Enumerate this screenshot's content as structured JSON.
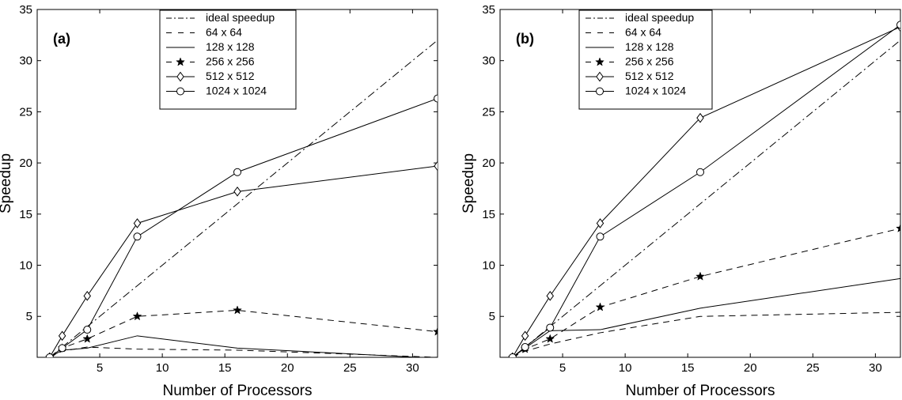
{
  "chart_data": [
    {
      "type": "line",
      "panel_label": "(a)",
      "xlabel": "Number of Processors",
      "ylabel": "Speedup",
      "xlim": [
        0,
        32
      ],
      "ylim": [
        1,
        35
      ],
      "xticks": [
        5,
        10,
        15,
        20,
        25,
        30
      ],
      "yticks": [
        5,
        10,
        15,
        20,
        25,
        30,
        35
      ],
      "grid": false,
      "legend_position": "top-center",
      "series": [
        {
          "name": "ideal speedup",
          "line": "dashdot",
          "marker": "none",
          "x": [
            1,
            32
          ],
          "y": [
            1,
            32
          ]
        },
        {
          "name": "64 x 64",
          "line": "dashed",
          "marker": "none",
          "x": [
            1,
            2,
            4,
            8,
            16,
            32
          ],
          "y": [
            1.0,
            1.6,
            2.0,
            1.8,
            1.7,
            1.0
          ]
        },
        {
          "name": "128 x 128",
          "line": "solid",
          "marker": "none",
          "x": [
            1,
            2,
            4,
            8,
            16,
            32
          ],
          "y": [
            1.0,
            1.7,
            1.9,
            3.1,
            1.9,
            0.9
          ]
        },
        {
          "name": "256 x 256",
          "line": "dashed",
          "marker": "star",
          "x": [
            1,
            2,
            4,
            8,
            16,
            32
          ],
          "y": [
            1.0,
            1.9,
            2.8,
            5.0,
            5.6,
            3.5
          ]
        },
        {
          "name": "512 x 512",
          "line": "solid",
          "marker": "diamond",
          "x": [
            1,
            2,
            4,
            8,
            16,
            32
          ],
          "y": [
            1.0,
            3.1,
            7.0,
            14.1,
            17.2,
            19.7
          ]
        },
        {
          "name": "1024 x 1024",
          "line": "solid",
          "marker": "circle",
          "x": [
            1,
            2,
            4,
            8,
            16,
            32
          ],
          "y": [
            1.0,
            1.9,
            3.7,
            12.8,
            19.1,
            26.3
          ]
        }
      ]
    },
    {
      "type": "line",
      "panel_label": "(b)",
      "xlabel": "Number of Processors",
      "ylabel": "Speedup",
      "xlim": [
        0,
        32
      ],
      "ylim": [
        1,
        35
      ],
      "xticks": [
        5,
        10,
        15,
        20,
        25,
        30
      ],
      "yticks": [
        5,
        10,
        15,
        20,
        25,
        30,
        35
      ],
      "grid": false,
      "legend_position": "top-center",
      "series": [
        {
          "name": "ideal speedup",
          "line": "dashdot",
          "marker": "none",
          "x": [
            1,
            32
          ],
          "y": [
            1,
            32
          ]
        },
        {
          "name": "64 x 64",
          "line": "dashed",
          "marker": "none",
          "x": [
            1,
            2,
            4,
            8,
            16,
            32
          ],
          "y": [
            1.0,
            1.6,
            2.3,
            3.4,
            5.0,
            5.4
          ]
        },
        {
          "name": "128 x 128",
          "line": "solid",
          "marker": "none",
          "x": [
            1,
            2,
            4,
            8,
            16,
            32
          ],
          "y": [
            1.0,
            1.9,
            3.6,
            3.7,
            5.8,
            8.7
          ]
        },
        {
          "name": "256 x 256",
          "line": "dashed",
          "marker": "star",
          "x": [
            1,
            2,
            4,
            8,
            16,
            32
          ],
          "y": [
            1.0,
            1.8,
            2.8,
            5.9,
            8.9,
            13.6
          ]
        },
        {
          "name": "512 x 512",
          "line": "solid",
          "marker": "diamond",
          "x": [
            1,
            2,
            4,
            8,
            16,
            32
          ],
          "y": [
            1.0,
            3.1,
            7.0,
            14.1,
            24.4,
            33.3
          ]
        },
        {
          "name": "1024 x 1024",
          "line": "solid",
          "marker": "circle",
          "x": [
            1,
            2,
            4,
            8,
            16,
            32
          ],
          "y": [
            1.0,
            2.0,
            3.9,
            12.8,
            19.1,
            33.5
          ]
        }
      ]
    }
  ]
}
